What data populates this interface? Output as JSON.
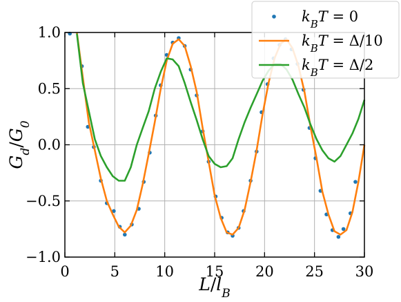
{
  "chart_data": {
    "type": "line",
    "title": "",
    "xlabel": "L/l_B",
    "ylabel": "G_d/G_0",
    "xlim": [
      0,
      30
    ],
    "ylim": [
      -1.0,
      1.0
    ],
    "x_ticks": [
      0,
      5,
      10,
      15,
      20,
      25,
      30
    ],
    "x_tick_labels": [
      "0",
      "5",
      "10",
      "15",
      "20",
      "25",
      "30"
    ],
    "y_ticks": [
      -1.0,
      -0.5,
      0.0,
      0.5,
      1.0
    ],
    "y_tick_labels": [
      "−1.0",
      "−0.5",
      "0.0",
      "0.5",
      "1.0"
    ],
    "grid": true,
    "legend_position": "top-right",
    "series": [
      {
        "name": "k_B T = 0",
        "style": "markers",
        "color": "#1f77b4",
        "x": [
          0.5,
          1.7,
          2.3,
          2.9,
          3.6,
          4.2,
          4.9,
          5.5,
          6.0,
          6.7,
          7.4,
          7.9,
          8.5,
          9.1,
          9.6,
          10.2,
          10.8,
          11.4,
          12.0,
          12.6,
          13.2,
          13.8,
          14.4,
          15.1,
          15.7,
          16.3,
          16.8,
          17.4,
          17.9,
          18.6,
          19.2,
          19.7,
          20.3,
          20.9,
          21.5,
          22.1,
          22.7,
          23.3,
          23.9,
          24.5,
          25.1,
          25.6,
          26.2,
          26.8,
          27.4,
          27.9,
          28.6,
          29.1
        ],
        "y": [
          0.99,
          0.7,
          0.16,
          -0.02,
          -0.32,
          -0.52,
          -0.59,
          -0.73,
          -0.8,
          -0.71,
          -0.57,
          -0.33,
          -0.07,
          0.26,
          0.53,
          0.8,
          0.91,
          0.95,
          0.88,
          0.67,
          0.44,
          0.12,
          -0.15,
          -0.46,
          -0.65,
          -0.78,
          -0.81,
          -0.74,
          -0.59,
          -0.32,
          -0.06,
          0.29,
          0.54,
          0.77,
          0.89,
          0.94,
          0.85,
          0.72,
          0.49,
          0.15,
          -0.12,
          -0.41,
          -0.62,
          -0.76,
          -0.82,
          -0.75,
          -0.61,
          -0.33
        ]
      },
      {
        "name": "k_B T = Δ/10",
        "style": "line",
        "color": "#ff7f0e",
        "x": [
          1.2,
          1.8,
          2.4,
          3.0,
          3.6,
          4.2,
          4.8,
          5.4,
          6.0,
          6.6,
          7.2,
          7.8,
          8.4,
          9.0,
          9.6,
          10.2,
          10.8,
          11.4,
          12.0,
          12.6,
          13.2,
          13.8,
          14.4,
          15.0,
          15.6,
          16.2,
          16.8,
          17.4,
          18.0,
          18.6,
          19.2,
          19.8,
          20.4,
          21.0,
          21.6,
          22.2,
          22.8,
          23.4,
          24.0,
          24.6,
          25.2,
          25.8,
          26.4,
          27.0,
          27.6,
          28.2,
          28.8,
          29.4,
          30.0
        ],
        "y": [
          1.0,
          0.6,
          0.2,
          -0.05,
          -0.3,
          -0.5,
          -0.62,
          -0.73,
          -0.78,
          -0.72,
          -0.58,
          -0.35,
          -0.08,
          0.2,
          0.5,
          0.75,
          0.9,
          0.94,
          0.88,
          0.7,
          0.47,
          0.15,
          -0.15,
          -0.45,
          -0.65,
          -0.78,
          -0.8,
          -0.74,
          -0.58,
          -0.33,
          -0.05,
          0.27,
          0.55,
          0.77,
          0.9,
          0.94,
          0.86,
          0.7,
          0.47,
          0.16,
          -0.12,
          -0.42,
          -0.62,
          -0.77,
          -0.8,
          -0.76,
          -0.6,
          -0.33,
          0.0
        ]
      },
      {
        "name": "k_B T = Δ/2",
        "style": "line",
        "color": "#2ca02c",
        "x": [
          1.2,
          1.8,
          2.4,
          3.0,
          3.6,
          4.2,
          4.8,
          5.4,
          6.0,
          6.6,
          7.2,
          7.8,
          8.4,
          9.0,
          9.6,
          10.2,
          10.8,
          11.4,
          12.0,
          12.6,
          13.2,
          13.8,
          14.4,
          15.0,
          15.6,
          16.2,
          16.8,
          17.4,
          18.0,
          18.6,
          19.2,
          19.8,
          20.4,
          21.0,
          21.6,
          22.2,
          22.8,
          23.4,
          24.0,
          24.6,
          25.2,
          25.8,
          26.4,
          27.0,
          27.6,
          28.2,
          28.8,
          29.4,
          30.0
        ],
        "y": [
          0.99,
          0.55,
          0.3,
          0.05,
          -0.1,
          -0.2,
          -0.28,
          -0.32,
          -0.32,
          -0.2,
          0.0,
          0.15,
          0.3,
          0.5,
          0.65,
          0.77,
          0.76,
          0.7,
          0.55,
          0.38,
          0.22,
          0.05,
          -0.1,
          -0.17,
          -0.2,
          -0.19,
          -0.12,
          0.05,
          0.2,
          0.33,
          0.45,
          0.57,
          0.66,
          0.72,
          0.72,
          0.67,
          0.58,
          0.45,
          0.33,
          0.18,
          0.05,
          -0.05,
          -0.12,
          -0.15,
          -0.1,
          0.0,
          0.1,
          0.23,
          0.4
        ]
      }
    ]
  },
  "colors": {
    "series_1": "#1f77b4",
    "series_2": "#ff7f0e",
    "series_3": "#2ca02c",
    "grid": "#b0b0b0",
    "axis": "#000000"
  }
}
